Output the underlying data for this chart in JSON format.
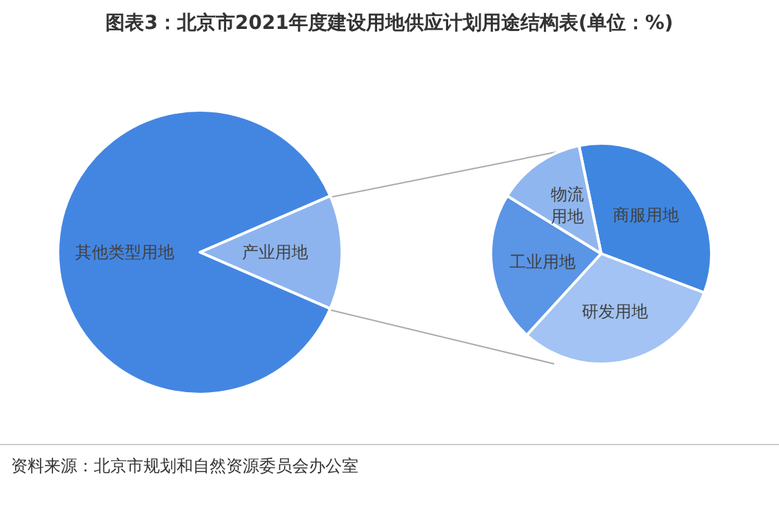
{
  "chart_data": [
    {
      "type": "pie",
      "title": "图表3：北京市2021年度建设用地供应计划用途结构表(单位：%)",
      "categories": [
        "产业用地",
        "其他类型用地"
      ],
      "values": [
        13,
        87
      ],
      "colors": [
        "#8db4ee",
        "#4386e2"
      ],
      "annotations": [
        "资料来源：北京市规划和自然资源委员会办公室"
      ]
    },
    {
      "type": "pie",
      "categories": [
        "商服用地",
        "研发用地",
        "工业用地",
        "物流用地"
      ],
      "values": [
        34,
        31,
        22,
        13
      ],
      "colors": [
        "#3f86e0",
        "#a2c3f3",
        "#5a95e6",
        "#8fb6ee"
      ]
    }
  ]
}
